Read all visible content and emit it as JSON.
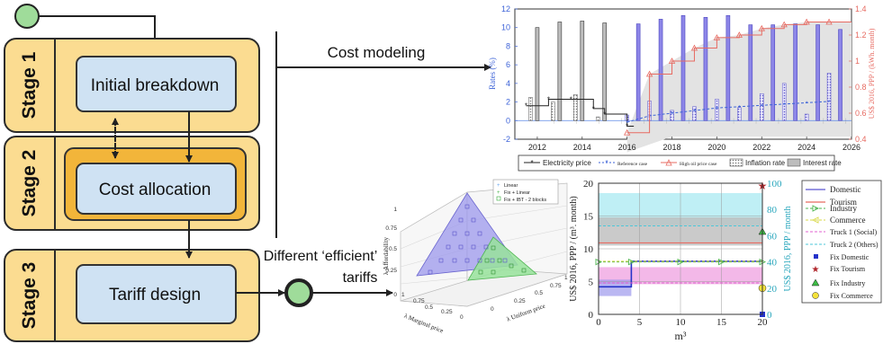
{
  "colors": {
    "stage_fill": "#fbdc91",
    "stage_border": "#2b2b2b",
    "box_fill": "#cfe2f3",
    "alloc_fill": "#f2b53a",
    "start_node": "#9fdc9a",
    "end_node": "#9fdc9a",
    "bar_gray": "#bdbdbd",
    "bar_blue": "#8d86e8",
    "line_red": "#e76b62",
    "line_blue": "#3d63d8",
    "band_cyan": "#bfeff5",
    "band_pink": "#f3b8e8",
    "band_gray": "#bdbdbd",
    "tri_blue": "#9c98ec",
    "tri_green": "#98e39b"
  },
  "flow": {
    "stages": [
      "Stage 1",
      "Stage 2",
      "Stage 3"
    ],
    "boxes": [
      "Initial breakdown",
      "Cost allocation",
      "Tariff design"
    ],
    "cost_modeling_label": "Cost modeling",
    "tariffs_label_line1": "Different ‘efficient’",
    "tariffs_label_line2": "tariffs"
  },
  "chart_data": [
    {
      "type": "bar",
      "xlim": [
        2011,
        2026
      ],
      "xticks": [
        "2012",
        "2014",
        "2016",
        "2018",
        "2020",
        "2022",
        "2024",
        "2026"
      ],
      "ylim_left": [
        -2,
        12
      ],
      "yticks_left": [
        "-2",
        "0",
        "2",
        "4",
        "6",
        "8",
        "10",
        "12"
      ],
      "ylabel_left": "Rates (%)",
      "ylim_right": [
        0.4,
        1.4
      ],
      "yticks_right": [
        "0.4",
        "0.6",
        "0.8",
        "1",
        "1.2",
        "1.4"
      ],
      "ylabel_right": "US$ 2016, PPP / (kWh. month)",
      "legend": [
        "Electricity price",
        "Reference case",
        "High oil price case",
        "Inflation rate",
        "Interest rate"
      ],
      "legend_placement": "bottom",
      "series": [
        {
          "name": "Interest rate",
          "x": [
            2012,
            2013,
            2014,
            2015
          ],
          "values": [
            10.0,
            10.6,
            10.7,
            10.5
          ]
        },
        {
          "name": "Interest rate",
          "x": [
            2016.5,
            2017.5,
            2018.5,
            2019.5,
            2020.5,
            2021.5,
            2022.5,
            2023.5,
            2024.5,
            2025.5
          ],
          "values": [
            10.4,
            10.9,
            11.3,
            11.1,
            11.3,
            10.3,
            10.3,
            10.4,
            10.3,
            9.8
          ]
        },
        {
          "name": "Inflation rate",
          "x": [
            2011.7,
            2012.7,
            2013.7,
            2014.7
          ],
          "values": [
            2.5,
            2.0,
            2.8,
            0.4
          ]
        },
        {
          "name": "Inflation rate",
          "x": [
            2016,
            2017,
            2018,
            2019,
            2020,
            2021,
            2022,
            2023,
            2024,
            2025
          ],
          "values": [
            0.6,
            2.1,
            1.1,
            1.5,
            2.3,
            1.4,
            2.9,
            4.0,
            0.7,
            5.1
          ]
        },
        {
          "name": "Electricity price",
          "x": [
            2011.5,
            2012.5,
            2013.5,
            2014.5,
            2015,
            2016
          ],
          "values": [
            1.6,
            2.3,
            2.3,
            1.3,
            0.7,
            -0.6
          ]
        },
        {
          "name": "Reference case",
          "x": [
            2016,
            2017,
            2018,
            2019,
            2020,
            2021,
            2022,
            2023,
            2024,
            2025
          ],
          "values": [
            0.3,
            0.8,
            1.0,
            1.2,
            1.4,
            1.5,
            1.6,
            1.7,
            1.8,
            1.9
          ]
        },
        {
          "name": "High oil price case",
          "x": [
            2016,
            2017,
            2018,
            2019,
            2020,
            2021,
            2022,
            2023,
            2024,
            2025
          ],
          "values": [
            0.45,
            0.9,
            1.0,
            1.1,
            1.18,
            1.2,
            1.25,
            1.28,
            1.3,
            1.3
          ]
        }
      ]
    },
    {
      "type": "scatter",
      "legend": [
        "Linear",
        "Fix + Linear",
        "Fix + IBT - 2 blocks"
      ],
      "axis_labels": [
        "λ Affordability",
        "λ Marginal price",
        "λ Uniform price"
      ],
      "ticks_vertical": [
        "0",
        "0.25",
        "0.5",
        "0.75",
        "1"
      ],
      "ticks_left": [
        "0",
        "0.25",
        "0.5",
        "0.75",
        "1"
      ],
      "ticks_right": [
        "0",
        "0.25",
        "0.5",
        "0.75",
        "1"
      ]
    },
    {
      "type": "line",
      "xlim": [
        0,
        20
      ],
      "xticks": [
        "0",
        "5",
        "10",
        "15",
        "20"
      ],
      "xlabel": "m³",
      "ylim_left": [
        0,
        20
      ],
      "yticks_left": [
        "0",
        "5",
        "10",
        "15",
        "20"
      ],
      "ylabel_left": "US$ 2016, PPP / (m³. month)",
      "ylim_right": [
        0,
        100
      ],
      "yticks_right": [
        "0",
        "20",
        "40",
        "60",
        "80",
        "100"
      ],
      "ylabel_right": "US$ 2016, PPP / month",
      "legend": [
        "Domestic",
        "Tourism",
        "Industry",
        "Commerce",
        "Truck 1 (Social)",
        "Truck 2 (Others)",
        "Fix Domestic",
        "Fix Tourism",
        "Fix Industry",
        "Fix Commerce"
      ],
      "legend_placement": "right",
      "series": [
        {
          "name": "Domestic",
          "x": [
            0,
            4,
            4,
            20
          ],
          "values": [
            4.2,
            4.2,
            8.1,
            8.1
          ]
        },
        {
          "name": "Tourism",
          "x": [
            0,
            20
          ],
          "values": [
            10.9,
            10.9
          ]
        },
        {
          "name": "Industry",
          "x": [
            0,
            4,
            10,
            15,
            20
          ],
          "values": [
            8.0,
            8.0,
            8.0,
            8.0,
            8.0
          ]
        },
        {
          "name": "Commerce",
          "x": [
            0,
            20
          ],
          "values": [
            8.1,
            8.1
          ]
        },
        {
          "name": "Truck 1 (Social)",
          "x": [
            0,
            20
          ],
          "values": [
            4.8,
            4.8
          ]
        },
        {
          "name": "Truck 2 (Others)",
          "x": [
            0,
            20
          ],
          "values": [
            13.5,
            13.5
          ]
        },
        {
          "name": "Fix Domestic",
          "x": [
            20
          ],
          "values": [
            0
          ]
        },
        {
          "name": "Fix Tourism",
          "x": [
            20
          ],
          "values": [
            98
          ]
        },
        {
          "name": "Fix Industry",
          "x": [
            20
          ],
          "values": [
            63
          ]
        },
        {
          "name": "Fix Commerce",
          "x": [
            20
          ],
          "values": [
            20
          ]
        }
      ]
    }
  ]
}
